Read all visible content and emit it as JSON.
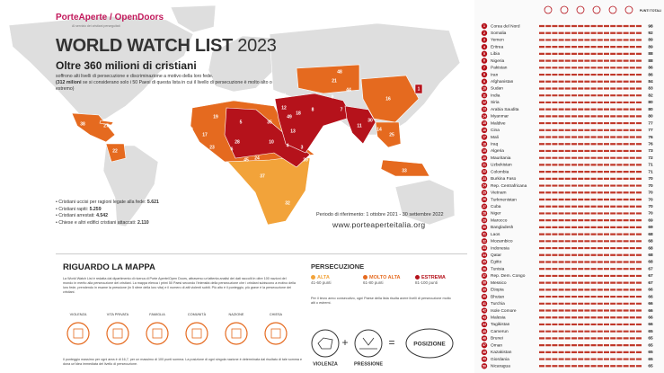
{
  "header": {
    "logo": "PorteAperte / OpenDoors",
    "tagline": "Al servizio dei cristiani perseguitati",
    "title": "WORLD WATCH LIST",
    "year": "2023",
    "subtitle": "Oltre 360 milioni di cristiani",
    "intro": "soffrono alti livelli di persecuzione e discriminazione a motivo della loro fede.",
    "intro_bold": "(312 milioni",
    "intro_rest": "se si considerano solo i 50 Paesi di questa lista in cui il livello di persecuzione è molto alto o estremo)"
  },
  "stats": [
    {
      "label": "Cristiani uccisi per ragioni legate alla fede:",
      "value": "5.621"
    },
    {
      "label": "Cristiani rapiti:",
      "value": "5.259"
    },
    {
      "label": "Cristiani arrestati:",
      "value": "4.542"
    },
    {
      "label": "Chiese e altri edifici cristiani attaccati:",
      "value": "2.110"
    }
  ],
  "period": "Periodo di riferimento: 1 ottobre 2021 - 30 settembre 2022",
  "url": "www.porteaperteitalia.org",
  "ranking": {
    "column_label": "PUNTI TOTALI",
    "rows": [
      {
        "rank": 1,
        "country": "Corea del Nord",
        "score": 98
      },
      {
        "rank": 2,
        "country": "Somalia",
        "score": 92
      },
      {
        "rank": 3,
        "country": "Yemen",
        "score": 89
      },
      {
        "rank": 4,
        "country": "Eritrea",
        "score": 89
      },
      {
        "rank": 5,
        "country": "Libia",
        "score": 88
      },
      {
        "rank": 6,
        "country": "Nigeria",
        "score": 88
      },
      {
        "rank": 7,
        "country": "Pakistan",
        "score": 86
      },
      {
        "rank": 8,
        "country": "Iran",
        "score": 86
      },
      {
        "rank": 9,
        "country": "Afghanistan",
        "score": 84
      },
      {
        "rank": 10,
        "country": "Sudan",
        "score": 83
      },
      {
        "rank": 11,
        "country": "India",
        "score": 82
      },
      {
        "rank": 12,
        "country": "Siria",
        "score": 80
      },
      {
        "rank": 13,
        "country": "Arabia Saudita",
        "score": 80
      },
      {
        "rank": 14,
        "country": "Myanmar",
        "score": 80
      },
      {
        "rank": 15,
        "country": "Maldive",
        "score": 77
      },
      {
        "rank": 16,
        "country": "Cina",
        "score": 77
      },
      {
        "rank": 17,
        "country": "Mali",
        "score": 76
      },
      {
        "rank": 18,
        "country": "Iraq",
        "score": 76
      },
      {
        "rank": 19,
        "country": "Algeria",
        "score": 73
      },
      {
        "rank": 20,
        "country": "Mauritania",
        "score": 72
      },
      {
        "rank": 21,
        "country": "Uzbekistan",
        "score": 71
      },
      {
        "rank": 22,
        "country": "Colombia",
        "score": 71
      },
      {
        "rank": 23,
        "country": "Burkina Faso",
        "score": 70
      },
      {
        "rank": 24,
        "country": "Rep. Centrafricana",
        "score": 70
      },
      {
        "rank": 25,
        "country": "Vietnam",
        "score": 70
      },
      {
        "rank": 26,
        "country": "Turkmenistan",
        "score": 70
      },
      {
        "rank": 27,
        "country": "Cuba",
        "score": 70
      },
      {
        "rank": 28,
        "country": "Niger",
        "score": 70
      },
      {
        "rank": 29,
        "country": "Marocco",
        "score": 69
      },
      {
        "rank": 30,
        "country": "Bangladesh",
        "score": 69
      },
      {
        "rank": 31,
        "country": "Laos",
        "score": 68
      },
      {
        "rank": 32,
        "country": "Mozambico",
        "score": 68
      },
      {
        "rank": 33,
        "country": "Indonesia",
        "score": 68
      },
      {
        "rank": 34,
        "country": "Qatar",
        "score": 68
      },
      {
        "rank": 35,
        "country": "Egitto",
        "score": 68
      },
      {
        "rank": 36,
        "country": "Tunisia",
        "score": 67
      },
      {
        "rank": 37,
        "country": "Rep. Dem. Congo",
        "score": 67
      },
      {
        "rank": 38,
        "country": "Messico",
        "score": 67
      },
      {
        "rank": 39,
        "country": "Etiopia",
        "score": 66
      },
      {
        "rank": 40,
        "country": "Bhutan",
        "score": 66
      },
      {
        "rank": 41,
        "country": "Turchia",
        "score": 66
      },
      {
        "rank": 42,
        "country": "Isole Comore",
        "score": 66
      },
      {
        "rank": 43,
        "country": "Malesia",
        "score": 66
      },
      {
        "rank": 44,
        "country": "Tagikistan",
        "score": 66
      },
      {
        "rank": 45,
        "country": "Camerun",
        "score": 65
      },
      {
        "rank": 46,
        "country": "Brunei",
        "score": 65
      },
      {
        "rank": 47,
        "country": "Oman",
        "score": 65
      },
      {
        "rank": 48,
        "country": "Kazakistan",
        "score": 65
      },
      {
        "rank": 49,
        "country": "Giordania",
        "score": 65
      },
      {
        "rank": 50,
        "country": "Nicaragua",
        "score": 65
      }
    ]
  },
  "about": {
    "title": "RIGUARDO LA MAPPA",
    "text": "La World Watch List è redatta dal dipartimento di ricerca di Porte Aperte/Open Doors, attraverso un'attenta analisi dei dati raccolti in oltre 100 nazioni del mondo in merito alla persecuzione dei cristiani. La mappa elenca i primi 50 Paesi secondo l'intensità della persecuzione che i cristiani subiscono a motivo della loro fede, prendendo in esame la pressione (in 5 sfere della loro vita) e il numero di atti violenti subiti. Più alto è il punteggio, più grave è la persecuzione dei cristiani.",
    "spheres": [
      "VIOLENZA",
      "VITA PRIVATA",
      "FAMIGLIA",
      "COMUNITÀ",
      "NAZIONE",
      "CHIESA"
    ],
    "footnote": "Il punteggio massimo per ogni area è di 16,7, per un massimo di 100 punti somma. La posizione di ogni singola nazione è determinata dal risultato di tale somma e dona un'idea immediata del livello di persecuzione."
  },
  "legend": {
    "title": "PERSECUZIONE",
    "levels": [
      {
        "name": "ALTA",
        "range": "41-60 punti",
        "color": "#f2a33a"
      },
      {
        "name": "MOLTO ALTA",
        "range": "61-80 punti",
        "color": "#e56a1f"
      },
      {
        "name": "ESTREMA",
        "range": "81-100 punti",
        "color": "#b5121b"
      }
    ],
    "note": "Per il terzo anno consecutivo, ogni Paese della lista risulta avere livelli di persecuzione molto alti o estremi."
  },
  "formula": {
    "a": "VIOLENZA",
    "b": "PRESSIONE",
    "result": "POSIZIONE"
  }
}
